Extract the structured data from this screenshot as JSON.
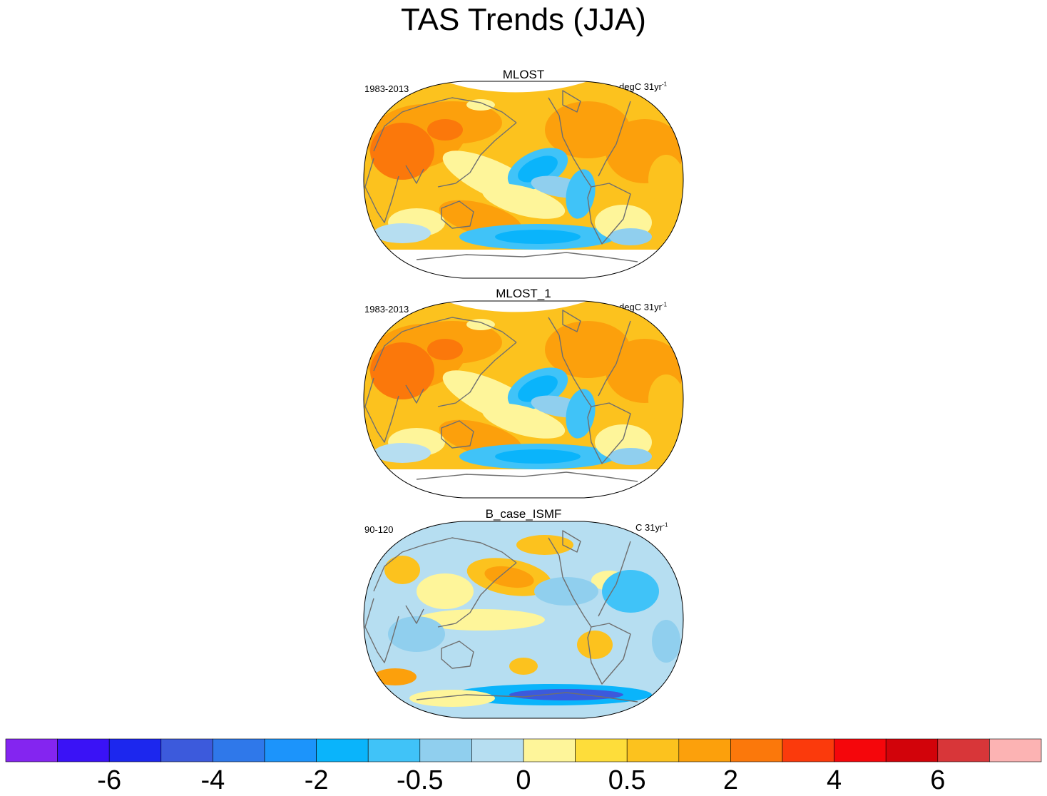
{
  "title": "TAS Trends (JJA)",
  "panels": [
    {
      "name": "MLOST",
      "period": "1983-2013",
      "units": "degC 31yr",
      "units_sup": "-1",
      "scenario": "warm"
    },
    {
      "name": "MLOST_1",
      "period": "1983-2013",
      "units": "degC 31yr",
      "units_sup": "-1",
      "scenario": "warm"
    },
    {
      "name": "B_case_ISMF",
      "period": "90-120",
      "units": "C 31yr",
      "units_sup": "-1",
      "scenario": "cool"
    }
  ],
  "colorbar": {
    "colors": [
      "#8425f0",
      "#3a12f6",
      "#1c27ee",
      "#3c5adc",
      "#2f78ea",
      "#1c94fb",
      "#0ab4fb",
      "#40c3f8",
      "#90cfee",
      "#b6def1",
      "#fef59a",
      "#fedd3a",
      "#fcc21e",
      "#fca00c",
      "#fb780b",
      "#fb3a0c",
      "#f5060b",
      "#d2030a",
      "#d83639",
      "#fcb3b3"
    ],
    "tick_labels": [
      "-6",
      "-4",
      "-2",
      "-0.5",
      "0",
      "0.5",
      "2",
      "4",
      "6"
    ],
    "tick_boundary_index": [
      2,
      4,
      6,
      8,
      10,
      12,
      14,
      16,
      18
    ]
  },
  "chart_data": {
    "type": "heatmap",
    "title": "TAS Trends (JJA)",
    "projection": "Winkel tripel world map",
    "variable": "surface air temperature trend",
    "season": "JJA",
    "series": [
      {
        "name": "MLOST",
        "period": "1983-2013",
        "units": "degC 31yr-1",
        "dominant_range": [
          0,
          2
        ],
        "cool_regions": [
          "eastern tropical Pacific",
          "Southern Ocean",
          "central North Pacific"
        ],
        "missing_regions": [
          "Antarctica",
          "Arctic Ocean"
        ]
      },
      {
        "name": "MLOST_1",
        "period": "1983-2013",
        "units": "degC 31yr-1",
        "dominant_range": [
          0,
          2
        ],
        "cool_regions": [
          "eastern tropical Pacific",
          "Southern Ocean",
          "central North Pacific"
        ],
        "missing_regions": [
          "Antarctica",
          "Arctic Ocean"
        ]
      },
      {
        "name": "B_case_ISMF",
        "period": "90-120",
        "units": "C 31yr-1",
        "dominant_range": [
          -2,
          0.5
        ],
        "warm_regions": [
          "North Pacific",
          "Central Asia",
          "Greenland coast",
          "Antarctic Peninsula"
        ],
        "cool_regions": [
          "Southern Ocean"
        ]
      }
    ],
    "colorbar_levels": [
      -6,
      -4,
      -2,
      -0.5,
      0,
      0.5,
      2,
      4,
      6
    ]
  }
}
